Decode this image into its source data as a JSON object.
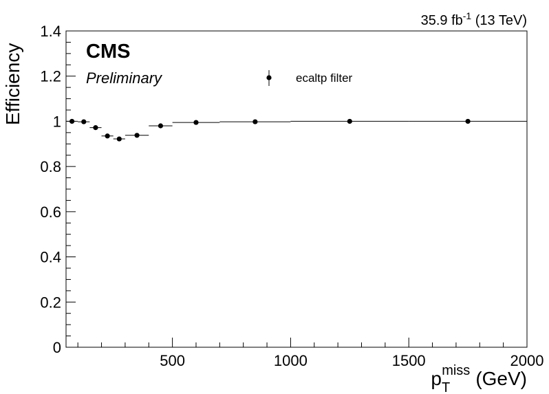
{
  "header": {
    "lumi_value": "35.9 fb",
    "lumi_exp": "-1",
    "energy": " (13 TeV)",
    "cms_label": "CMS",
    "status_label": "Preliminary"
  },
  "chart_data": {
    "type": "scatter",
    "title": "",
    "xlabel_main": "p",
    "xlabel_sub": "T",
    "xlabel_sup": "miss",
    "xlabel_unit": "(GeV)",
    "ylabel": "Efficiency",
    "xlim": [
      50,
      2000
    ],
    "ylim": [
      0,
      1.4
    ],
    "x_ticks": [
      500,
      1000,
      1500,
      2000
    ],
    "x_tick_labels": [
      "500",
      "1000",
      "1500",
      "2000"
    ],
    "y_ticks": [
      0,
      0.2,
      0.4,
      0.6,
      0.8,
      1,
      1.2,
      1.4
    ],
    "y_tick_labels": [
      "0",
      "0.2",
      "0.4",
      "0.6",
      "0.8",
      "1",
      "1.2",
      "1.4"
    ],
    "legend": {
      "label": "ecaltp filter",
      "placement": "top-center"
    },
    "series": [
      {
        "name": "ecaltp filter",
        "points": [
          {
            "x": 75,
            "xlow": 50,
            "xhigh": 100,
            "y": 1.0,
            "err": 0.003
          },
          {
            "x": 125,
            "xlow": 100,
            "xhigh": 150,
            "y": 0.998,
            "err": 0.003
          },
          {
            "x": 175,
            "xlow": 150,
            "xhigh": 200,
            "y": 0.972,
            "err": 0.003
          },
          {
            "x": 225,
            "xlow": 200,
            "xhigh": 250,
            "y": 0.935,
            "err": 0.004
          },
          {
            "x": 275,
            "xlow": 250,
            "xhigh": 300,
            "y": 0.922,
            "err": 0.004
          },
          {
            "x": 350,
            "xlow": 300,
            "xhigh": 400,
            "y": 0.938,
            "err": 0.004
          },
          {
            "x": 450,
            "xlow": 400,
            "xhigh": 500,
            "y": 0.98,
            "err": 0.004
          },
          {
            "x": 600,
            "xlow": 500,
            "xhigh": 700,
            "y": 0.995,
            "err": 0.003
          },
          {
            "x": 850,
            "xlow": 700,
            "xhigh": 1000,
            "y": 0.998,
            "err": 0.003
          },
          {
            "x": 1250,
            "xlow": 1000,
            "xhigh": 1500,
            "y": 1.0,
            "err": 0.003
          },
          {
            "x": 1750,
            "xlow": 1500,
            "xhigh": 2000,
            "y": 1.0,
            "err": 0.003
          }
        ]
      }
    ],
    "grid": false
  }
}
